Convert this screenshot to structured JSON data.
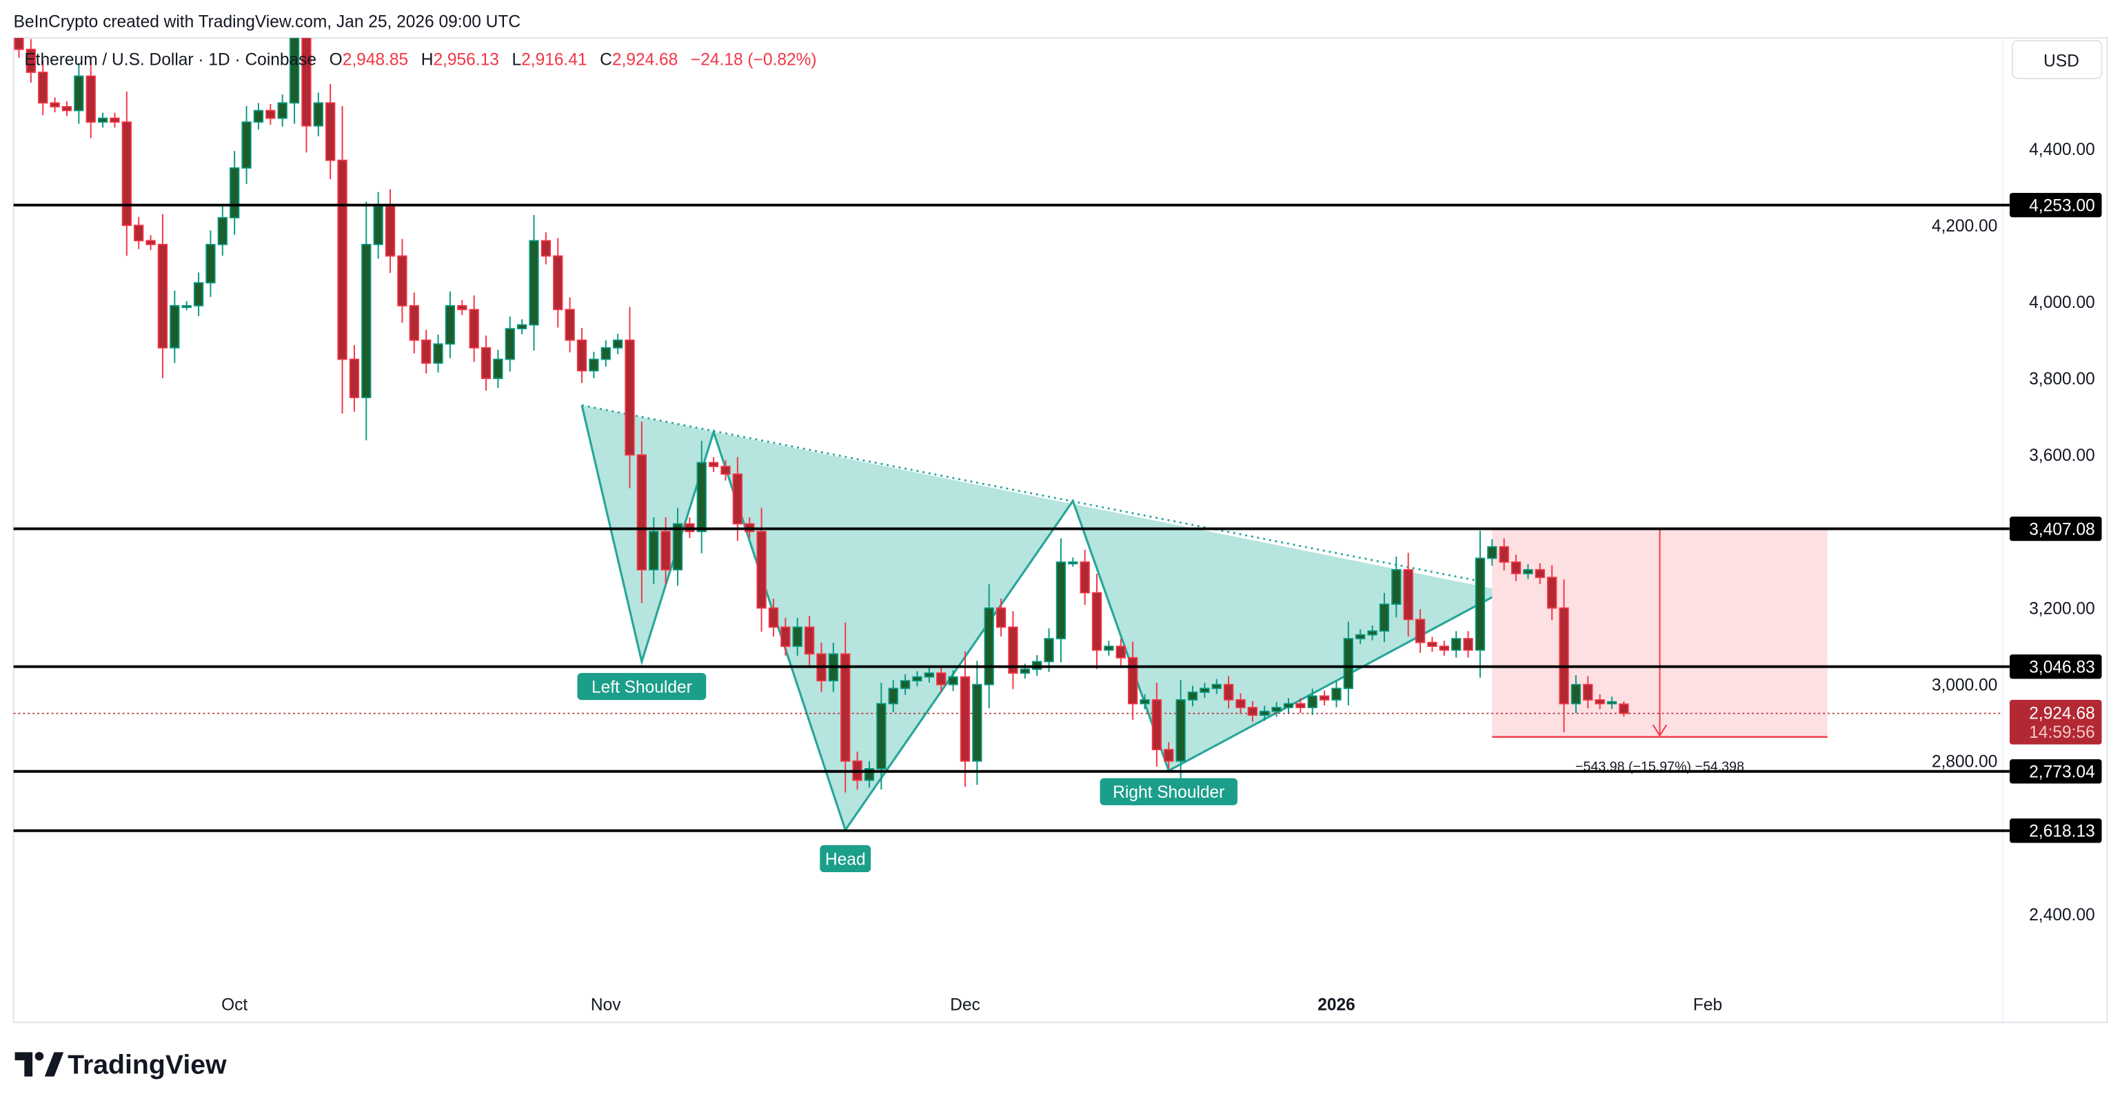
{
  "header": {
    "credit": "BeInCrypto created with TradingView.com, Jan 25, 2026 09:00 UTC",
    "symbol": "Ethereum / U.S. Dollar · 1D · Coinbase",
    "o_label": "O",
    "o_value": "2,948.85",
    "h_label": "H",
    "h_value": "2,956.13",
    "l_label": "L",
    "l_value": "2,916.41",
    "c_label": "C",
    "c_value": "2,924.68",
    "change": "−24.18 (−0.82%)"
  },
  "axis": {
    "currency": "USD",
    "current_price": "2,924.68",
    "countdown": "14:59:56"
  },
  "branding": {
    "logo_text": "TradingView"
  },
  "colors": {
    "up_wick": "#089981",
    "up_body": "#1b5e2b",
    "down_wick": "#f23645",
    "down_body": "#b22833",
    "pattern_fill": "#b2e3dc",
    "pattern_stroke": "#26a69a",
    "label_bg": "#1b9e8a",
    "level": "#000000",
    "target_box": "#fde0e2",
    "target_line": "#f23645"
  },
  "chart_data": {
    "type": "candlestick",
    "title": "",
    "interval": "1D",
    "start_date": "2025-09-13",
    "end_date": "2026-01-25",
    "first_open": 4700,
    "close": [
      4660,
      4600,
      4520,
      4510,
      4500,
      4590,
      4470,
      4480,
      4470,
      4200,
      4160,
      4150,
      3880,
      3990,
      3990,
      4050,
      4150,
      4220,
      4350,
      4470,
      4500,
      4480,
      4520,
      4690,
      4460,
      4520,
      4370,
      3850,
      3750,
      4150,
      4250,
      4120,
      3990,
      3900,
      3840,
      3890,
      3990,
      3980,
      3880,
      3800,
      3850,
      3930,
      3940,
      4160,
      4120,
      3980,
      3900,
      3820,
      3850,
      3880,
      3900,
      3600,
      3300,
      3400,
      3300,
      3420,
      3400,
      3580,
      3570,
      3550,
      3420,
      3400,
      3200,
      3150,
      3100,
      3150,
      3080,
      3010,
      3080,
      2800,
      2750,
      2780,
      2950,
      2990,
      3010,
      3020,
      3030,
      3000,
      3020,
      2800,
      3000,
      3200,
      3150,
      3030,
      3040,
      3060,
      3120,
      3320,
      3320,
      3240,
      3090,
      3100,
      3070,
      2950,
      2960,
      2830,
      2800,
      2960,
      2980,
      2990,
      3000,
      2960,
      2940,
      2920,
      2930,
      2940,
      2950,
      2940,
      2970,
      2960,
      2990,
      3120,
      3130,
      3140,
      3210,
      3300,
      3170,
      3110,
      3100,
      3090,
      3120,
      3090,
      3330,
      3360,
      3320,
      3290,
      3300,
      3280,
      3200,
      2950,
      3000,
      2960,
      2950,
      2955,
      2924.68
    ],
    "last_candle": {
      "open": 2948.85,
      "high": 2956.13,
      "low": 2916.41,
      "close": 2924.68
    },
    "y_ticks": [
      4400,
      4200,
      4000,
      3800,
      3600,
      3200,
      3000,
      2800,
      2400
    ],
    "y_tick_labels": [
      "4,400.00",
      "4,200.00",
      "4,000.00",
      "3,800.00",
      "3,600.00",
      "3,200.00",
      "3,000.00",
      "2,800.00",
      "2,400.00"
    ],
    "x_ticks": [
      {
        "date": "2025-10-01",
        "label": "Oct",
        "bold": false
      },
      {
        "date": "2025-11-01",
        "label": "Nov",
        "bold": false
      },
      {
        "date": "2025-12-01",
        "label": "Dec",
        "bold": false
      },
      {
        "date": "2026-01-01",
        "label": "2026",
        "bold": true
      },
      {
        "date": "2026-02-01",
        "label": "Feb",
        "bold": false
      }
    ],
    "ylim": [
      2250,
      4690
    ],
    "levels": [
      {
        "price": 4253.0,
        "label": "4,253.00"
      },
      {
        "price": 3407.08,
        "label": "3,407.08"
      },
      {
        "price": 3046.83,
        "label": "3,046.83"
      },
      {
        "price": 2773.04,
        "label": "2,773.04"
      },
      {
        "price": 2618.13,
        "label": "2,618.13"
      }
    ],
    "pattern": {
      "name": "Inverse Head and Shoulders",
      "points": [
        {
          "date": "2025-10-30",
          "price": 3730
        },
        {
          "date": "2025-11-04",
          "price": 3060
        },
        {
          "date": "2025-11-10",
          "price": 3660
        },
        {
          "date": "2025-11-21",
          "price": 2620
        },
        {
          "date": "2025-12-10",
          "price": 3480
        },
        {
          "date": "2025-12-18",
          "price": 2775
        },
        {
          "date": "2026-01-15",
          "price": 3245
        }
      ],
      "neckline": [
        {
          "date": "2025-10-30",
          "price": 3730
        },
        {
          "date": "2026-01-13",
          "price": 3270
        }
      ],
      "labels": [
        {
          "text": "Left Shoulder",
          "date": "2025-11-04",
          "price": 2995
        },
        {
          "text": "Head",
          "date": "2025-11-21",
          "price": 2545
        },
        {
          "text": "Right Shoulder",
          "date": "2025-12-18",
          "price": 2720
        }
      ]
    },
    "measure": {
      "from_date": "2026-01-14",
      "to_date": "2026-02-11",
      "arrow_date": "2026-01-28",
      "top": 3407.08,
      "bottom": 2863.1,
      "label": "−543.98 (−15.97%) −54,398"
    }
  }
}
